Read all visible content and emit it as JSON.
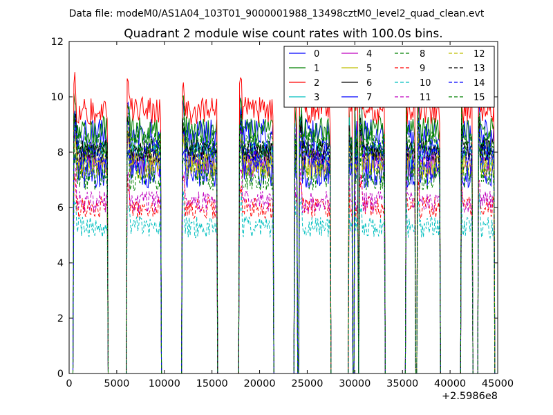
{
  "figure": {
    "suptitle": "Data file: modeM0/AS1A04_103T01_9000001988_13498cztM0_level2_quad_clean.evt"
  },
  "chart_data": {
    "type": "line",
    "title": "Quadrant 2 module wise count rates with 100.0s bins.",
    "xlabel": "",
    "ylabel": "",
    "x_offset_label": "+2.5986e8",
    "xlim": [
      0,
      45000
    ],
    "ylim": [
      0,
      12
    ],
    "xticks": [
      0,
      5000,
      10000,
      15000,
      20000,
      25000,
      30000,
      35000,
      40000,
      45000
    ],
    "yticks": [
      0,
      2,
      4,
      6,
      8,
      10,
      12
    ],
    "grid": false,
    "legend": {
      "position": "top-right",
      "columns": 4
    },
    "bin_seconds": 100,
    "segments": [
      {
        "start": 500,
        "end": 4000
      },
      {
        "start": 6100,
        "end": 9600
      },
      {
        "start": 11900,
        "end": 15500
      },
      {
        "start": 17900,
        "end": 21400
      },
      {
        "start": 23700,
        "end": 23900
      },
      {
        "start": 24200,
        "end": 27400
      },
      {
        "start": 29400,
        "end": 29700
      },
      {
        "start": 30000,
        "end": 30300
      },
      {
        "start": 30500,
        "end": 33100
      },
      {
        "start": 35400,
        "end": 36300
      },
      {
        "start": 36600,
        "end": 38900
      },
      {
        "start": 41200,
        "end": 42300
      },
      {
        "start": 43000,
        "end": 44600
      }
    ],
    "series": [
      {
        "name": "0",
        "color": "#0000ff",
        "dash": "solid",
        "level": 8.6,
        "noise": 0.6
      },
      {
        "name": "1",
        "color": "#008000",
        "dash": "solid",
        "level": 8.8,
        "noise": 0.5
      },
      {
        "name": "2",
        "color": "#ff0000",
        "dash": "solid",
        "level": 9.3,
        "noise": 0.5
      },
      {
        "name": "3",
        "color": "#00bfbf",
        "dash": "solid",
        "level": 7.9,
        "noise": 0.5
      },
      {
        "name": "4",
        "color": "#bf00bf",
        "dash": "solid",
        "level": 7.6,
        "noise": 0.5
      },
      {
        "name": "5",
        "color": "#bfbf00",
        "dash": "solid",
        "level": 7.5,
        "noise": 0.5
      },
      {
        "name": "6",
        "color": "#000000",
        "dash": "solid",
        "level": 7.9,
        "noise": 0.4
      },
      {
        "name": "7",
        "color": "#0000ff",
        "dash": "solid",
        "level": 7.3,
        "noise": 0.6
      },
      {
        "name": "8",
        "color": "#008000",
        "dash": "dashed",
        "level": 7.1,
        "noise": 0.5
      },
      {
        "name": "9",
        "color": "#ff0000",
        "dash": "dashed",
        "level": 6.0,
        "noise": 0.4
      },
      {
        "name": "10",
        "color": "#00bfbf",
        "dash": "dashed",
        "level": 5.1,
        "noise": 0.4
      },
      {
        "name": "11",
        "color": "#bf00bf",
        "dash": "dashed",
        "level": 6.2,
        "noise": 0.4
      },
      {
        "name": "12",
        "color": "#bfbf00",
        "dash": "dashed",
        "level": 7.6,
        "noise": 0.5
      },
      {
        "name": "13",
        "color": "#000000",
        "dash": "dashed",
        "level": 8.0,
        "noise": 0.4
      },
      {
        "name": "14",
        "color": "#0000ff",
        "dash": "dashed",
        "level": 7.7,
        "noise": 0.5
      },
      {
        "name": "15",
        "color": "#008000",
        "dash": "dashed",
        "level": 8.3,
        "noise": 0.5
      }
    ]
  }
}
